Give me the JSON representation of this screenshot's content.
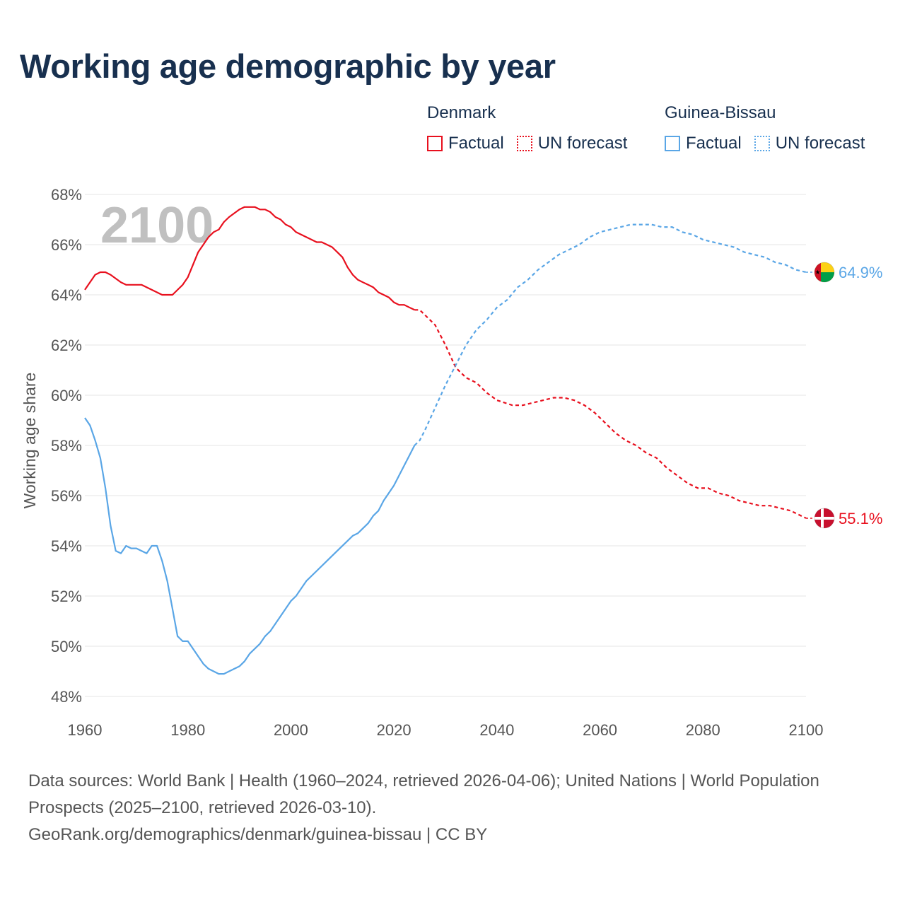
{
  "title": "Working age demographic by year",
  "year_display": "2100",
  "legend": {
    "groups": [
      {
        "name": "Denmark",
        "color": "#e8101e",
        "items": [
          {
            "label": "Factual",
            "style": "solid"
          },
          {
            "label": "UN forecast",
            "style": "dotted"
          }
        ]
      },
      {
        "name": "Guinea-Bissau",
        "color": "#5aa6e6",
        "items": [
          {
            "label": "Factual",
            "style": "solid"
          },
          {
            "label": "UN forecast",
            "style": "dotted"
          }
        ]
      }
    ]
  },
  "footer": {
    "line1": "Data sources: World Bank | Health (1960–2024, retrieved 2026-04-06); United Nations | World Population Prospects (2025–2100, retrieved 2026-03-10).",
    "line2": "GeoRank.org/demographics/denmark/guinea-bissau | CC BY"
  },
  "chart_data": {
    "type": "line",
    "title": "Working age demographic by year",
    "xlabel": "",
    "ylabel": "Working age share",
    "xlim": [
      1960,
      2100
    ],
    "ylim": [
      48,
      68
    ],
    "x_ticks": [
      1960,
      1980,
      2000,
      2020,
      2040,
      2060,
      2080,
      2100
    ],
    "y_ticks": [
      48,
      50,
      52,
      54,
      56,
      58,
      60,
      62,
      64,
      66,
      68
    ],
    "y_tick_labels": [
      "48%",
      "50%",
      "52%",
      "54%",
      "56%",
      "58%",
      "60%",
      "62%",
      "64%",
      "66%",
      "68%"
    ],
    "x_tick_labels": [
      "1960",
      "1980",
      "2000",
      "2020",
      "2040",
      "2060",
      "2080",
      "2100"
    ],
    "grid": true,
    "forecast_start": 2024,
    "series": [
      {
        "name": "Denmark",
        "color": "#e8101e",
        "end_label": "55.1%",
        "flag": "denmark",
        "x": [
          1960,
          1962,
          1963,
          1964,
          1965,
          1967,
          1968,
          1970,
          1971,
          1973,
          1975,
          1977,
          1979,
          1980,
          1982,
          1984,
          1985,
          1986,
          1987,
          1988,
          1990,
          1991,
          1993,
          1994,
          1995,
          1996,
          1997,
          1998,
          1999,
          2000,
          2001,
          2003,
          2005,
          2006,
          2007,
          2008,
          2009,
          2010,
          2011,
          2012,
          2013,
          2014,
          2015,
          2016,
          2017,
          2018,
          2019,
          2020,
          2021,
          2022,
          2023,
          2024,
          2025,
          2026,
          2028,
          2030,
          2032,
          2034,
          2036,
          2038,
          2040,
          2043,
          2045,
          2047,
          2049,
          2051,
          2053,
          2055,
          2057,
          2059,
          2061,
          2063,
          2065,
          2067,
          2069,
          2071,
          2073,
          2075,
          2077,
          2079,
          2081,
          2083,
          2085,
          2087,
          2089,
          2091,
          2093,
          2095,
          2097,
          2099,
          2100
        ],
        "y": [
          64.2,
          64.8,
          64.9,
          64.9,
          64.8,
          64.5,
          64.4,
          64.4,
          64.4,
          64.2,
          64.0,
          64.0,
          64.4,
          64.7,
          65.7,
          66.3,
          66.5,
          66.6,
          66.9,
          67.1,
          67.4,
          67.5,
          67.5,
          67.4,
          67.4,
          67.3,
          67.1,
          67.0,
          66.8,
          66.7,
          66.5,
          66.3,
          66.1,
          66.1,
          66.0,
          65.9,
          65.7,
          65.5,
          65.1,
          64.8,
          64.6,
          64.5,
          64.4,
          64.3,
          64.1,
          64.0,
          63.9,
          63.7,
          63.6,
          63.6,
          63.5,
          63.4,
          63.4,
          63.2,
          62.8,
          62.0,
          61.1,
          60.7,
          60.5,
          60.1,
          59.8,
          59.6,
          59.6,
          59.7,
          59.8,
          59.9,
          59.9,
          59.8,
          59.6,
          59.3,
          58.9,
          58.5,
          58.2,
          58.0,
          57.7,
          57.5,
          57.1,
          56.8,
          56.5,
          56.3,
          56.3,
          56.1,
          56.0,
          55.8,
          55.7,
          55.6,
          55.6,
          55.5,
          55.4,
          55.2,
          55.1
        ]
      },
      {
        "name": "Guinea-Bissau",
        "color": "#5aa6e6",
        "end_label": "64.9%",
        "flag": "guinea-bissau",
        "x": [
          1960,
          1961,
          1962,
          1963,
          1964,
          1965,
          1966,
          1967,
          1968,
          1969,
          1970,
          1971,
          1972,
          1973,
          1974,
          1975,
          1976,
          1977,
          1978,
          1979,
          1980,
          1982,
          1983,
          1984,
          1986,
          1987,
          1988,
          1990,
          1991,
          1992,
          1994,
          1995,
          1996,
          1998,
          2000,
          2001,
          2003,
          2005,
          2007,
          2009,
          2011,
          2012,
          2013,
          2015,
          2016,
          2017,
          2018,
          2020,
          2022,
          2023,
          2024,
          2025,
          2026,
          2028,
          2030,
          2032,
          2034,
          2036,
          2038,
          2040,
          2042,
          2044,
          2046,
          2048,
          2050,
          2052,
          2054,
          2056,
          2058,
          2060,
          2062,
          2064,
          2066,
          2068,
          2070,
          2072,
          2074,
          2076,
          2078,
          2080,
          2082,
          2084,
          2086,
          2088,
          2090,
          2092,
          2094,
          2096,
          2098,
          2100
        ],
        "y": [
          59.1,
          58.8,
          58.2,
          57.5,
          56.3,
          54.8,
          53.8,
          53.7,
          54.0,
          53.9,
          53.9,
          53.8,
          53.7,
          54.0,
          54.0,
          53.4,
          52.6,
          51.5,
          50.4,
          50.2,
          50.2,
          49.6,
          49.3,
          49.1,
          48.9,
          48.9,
          49.0,
          49.2,
          49.4,
          49.7,
          50.1,
          50.4,
          50.6,
          51.2,
          51.8,
          52.0,
          52.6,
          53.0,
          53.4,
          53.8,
          54.2,
          54.4,
          54.5,
          54.9,
          55.2,
          55.4,
          55.8,
          56.4,
          57.2,
          57.6,
          58.0,
          58.2,
          58.6,
          59.5,
          60.4,
          61.2,
          62.0,
          62.6,
          63.0,
          63.5,
          63.8,
          64.3,
          64.6,
          65.0,
          65.3,
          65.6,
          65.8,
          66.0,
          66.3,
          66.5,
          66.6,
          66.7,
          66.8,
          66.8,
          66.8,
          66.7,
          66.7,
          66.5,
          66.4,
          66.2,
          66.1,
          66.0,
          65.9,
          65.7,
          65.6,
          65.5,
          65.3,
          65.2,
          65.0,
          64.9
        ]
      }
    ]
  }
}
